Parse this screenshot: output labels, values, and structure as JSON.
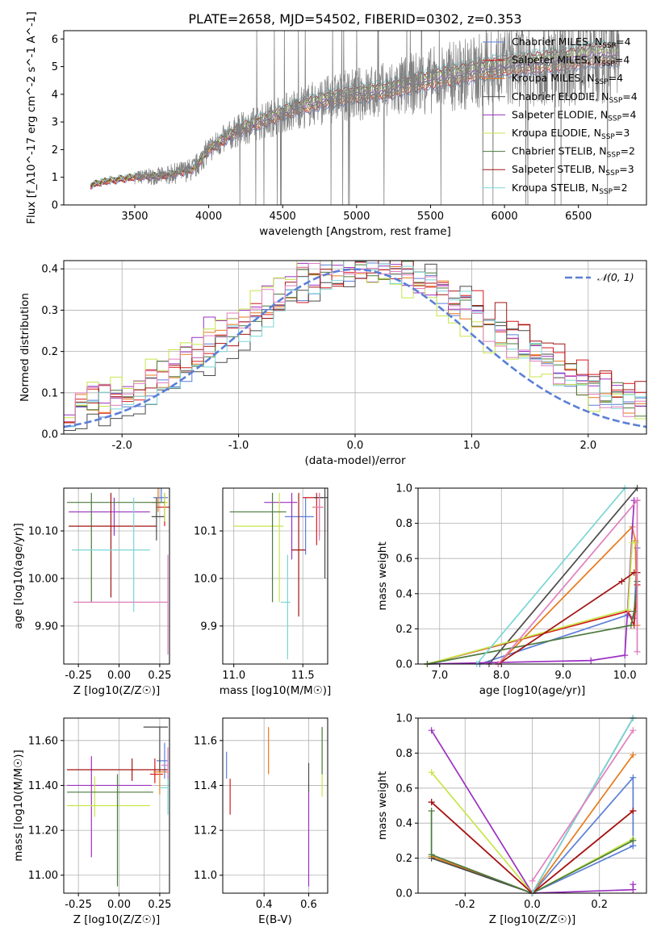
{
  "colors": {
    "data": "#808080",
    "series": [
      "#5b7fd6",
      "#d6191c",
      "#e67b1d",
      "#4a4a4a",
      "#9b30c0",
      "#c6e649",
      "#4c7a3d",
      "#a31515",
      "#7ad6d6",
      "#e07fbf"
    ]
  },
  "chart_data": [
    {
      "id": "spectrum",
      "type": "line",
      "title": "PLATE=2658, MJD=54502, FIBERID=0302, z=0.353",
      "xlabel": "wavelength [Angstrom, rest frame]",
      "ylabel": "Flux [f_λ10^-17 erg cm^-2 s^-1 A^-1]",
      "xlim": [
        3020,
        6960
      ],
      "ylim": [
        0,
        6.3
      ],
      "xticks": [
        3500,
        4000,
        4500,
        5000,
        5500,
        6000,
        6500
      ],
      "yticks": [
        0,
        1,
        2,
        3,
        4,
        5,
        6
      ],
      "grid": false,
      "legend_position": "top-right",
      "continuum": {
        "x": [
          3200,
          3300,
          3500,
          3700,
          3900,
          4000,
          4200,
          4400,
          4600,
          4800,
          5000,
          5200,
          5400,
          5600,
          5800,
          6000,
          6200,
          6400,
          6600,
          6780
        ],
        "y": [
          0.7,
          0.85,
          1.0,
          1.05,
          1.3,
          2.0,
          2.7,
          3.1,
          3.5,
          3.8,
          4.0,
          4.1,
          4.4,
          4.6,
          4.8,
          5.0,
          5.1,
          5.2,
          5.4,
          5.4
        ]
      },
      "series": [
        {
          "name": "Chabrier MILES",
          "nssp": "4"
        },
        {
          "name": "Salpeter MILES",
          "nssp": "4"
        },
        {
          "name": "Kroupa MILES",
          "nssp": "4"
        },
        {
          "name": "Chabrier ELODIE",
          "nssp": "4"
        },
        {
          "name": "Salpeter ELODIE",
          "nssp": "4"
        },
        {
          "name": "Kroupa ELODIE",
          "nssp": "3"
        },
        {
          "name": "Chabrier STELIB",
          "nssp": "2"
        },
        {
          "name": "Salpeter STELIB",
          "nssp": "3"
        },
        {
          "name": "Kroupa STELIB",
          "nssp": "2"
        }
      ]
    },
    {
      "id": "residuals",
      "type": "line",
      "xlabel": "(data-model)/error",
      "ylabel": "Normed distribution",
      "xlim": [
        -2.5,
        2.5
      ],
      "ylim": [
        0,
        0.42
      ],
      "xticks": [
        -2,
        -1,
        0,
        1,
        2
      ],
      "yticks": [
        0.0,
        0.1,
        0.2,
        0.3,
        0.4
      ],
      "grid": true,
      "legend": "𝒩(0, 1)",
      "legend_position": "top-right",
      "gaussian": {
        "mean": 0,
        "sigma": 1
      },
      "bin_width": 0.1
    },
    {
      "id": "age-vs-Z",
      "type": "scatter",
      "xlabel": "Z [log10(Z/Z☉)]",
      "ylabel": "age [log10(age/yr)]",
      "xlim": [
        -0.34,
        0.31
      ],
      "ylim": [
        9.82,
        10.19
      ],
      "xticks": [
        -0.25,
        0.0,
        0.25
      ],
      "yticks": [
        9.9,
        10.0,
        10.1
      ],
      "grid": true,
      "points": [
        {
          "x": 0.26,
          "y": 10.17,
          "xerr": [
            0.05,
            0.04
          ],
          "yerr": [
            0.01,
            0.02
          ]
        },
        {
          "x": 0.28,
          "y": 10.15,
          "xerr": [
            0.05,
            0.03
          ],
          "yerr": [
            0.04,
            0.03
          ]
        },
        {
          "x": 0.24,
          "y": 10.16,
          "xerr": [
            0.04,
            0.06
          ],
          "yerr": [
            0.02,
            0.03
          ]
        },
        {
          "x": 0.23,
          "y": 10.13,
          "xerr": [
            0.03,
            0.05
          ],
          "yerr": [
            0.05,
            0.04
          ]
        },
        {
          "x": -0.03,
          "y": 10.14,
          "xerr": [
            0.28,
            0.22
          ],
          "yerr": [
            0.05,
            0.03
          ]
        },
        {
          "x": 0.28,
          "y": 10.16,
          "xerr": [
            0.03,
            0.02
          ],
          "yerr": [
            0.04,
            0.02
          ]
        },
        {
          "x": -0.17,
          "y": 10.16,
          "xerr": [
            0.15,
            0.45
          ],
          "yerr": [
            0.21,
            0.02
          ]
        },
        {
          "x": -0.05,
          "y": 10.11,
          "xerr": [
            0.26,
            0.28
          ],
          "yerr": [
            0.15,
            0.07
          ]
        },
        {
          "x": 0.09,
          "y": 10.06,
          "xerr": [
            0.38,
            0.1
          ],
          "yerr": [
            0.13,
            0.11
          ]
        },
        {
          "x": 0.3,
          "y": 9.95,
          "xerr": [
            0.58,
            0.0
          ],
          "yerr": [
            0.11,
            0.1
          ]
        }
      ]
    },
    {
      "id": "age-vs-mass",
      "type": "scatter",
      "xlabel": "mass [log10(M/M☉)]",
      "ylabel": "",
      "xlim": [
        10.92,
        11.68
      ],
      "ylim": [
        9.82,
        10.19
      ],
      "xticks": [
        11.0,
        11.5
      ],
      "yticks": [
        9.9,
        10.0,
        10.1
      ],
      "grid": true,
      "points": [
        {
          "x": 11.52,
          "y": 10.13,
          "xerr": [
            0.15,
            0.06
          ],
          "yerr": [
            0.08,
            0.04
          ]
        },
        {
          "x": 11.6,
          "y": 10.17,
          "xerr": [
            0.1,
            0.05
          ],
          "yerr": [
            0.1,
            0.01
          ]
        },
        {
          "x": 11.62,
          "y": 10.15,
          "xerr": [
            0.05,
            0.03
          ],
          "yerr": [
            0.06,
            0.03
          ]
        },
        {
          "x": 11.66,
          "y": 10.17,
          "xerr": [
            0.08,
            0.02
          ],
          "yerr": [
            0.17,
            0.02
          ]
        },
        {
          "x": 11.42,
          "y": 10.16,
          "xerr": [
            0.2,
            0.04
          ],
          "yerr": [
            0.12,
            0.02
          ]
        },
        {
          "x": 11.33,
          "y": 10.11,
          "xerr": [
            0.33,
            0.03
          ],
          "yerr": [
            0.16,
            0.07
          ]
        },
        {
          "x": 11.28,
          "y": 10.14,
          "xerr": [
            0.31,
            0.1
          ],
          "yerr": [
            0.19,
            0.04
          ]
        },
        {
          "x": 11.47,
          "y": 10.06,
          "xerr": [
            0.05,
            0.05
          ],
          "yerr": [
            0.14,
            0.12
          ]
        },
        {
          "x": 11.39,
          "y": 9.95,
          "xerr": [
            0.05,
            0.02
          ],
          "yerr": [
            0.12,
            0.1
          ]
        },
        {
          "x": 11.62,
          "y": 10.15,
          "xerr": [
            0.04,
            0.03
          ],
          "yerr": [
            0.07,
            0.03
          ]
        }
      ]
    },
    {
      "id": "weight-vs-age",
      "type": "line",
      "xlabel": "age [log10(age/yr)]",
      "ylabel": "mass weight",
      "xlim": [
        6.65,
        10.35
      ],
      "ylim": [
        0,
        1
      ],
      "xticks": [
        7,
        8,
        9,
        10
      ],
      "yticks": [
        0.0,
        0.2,
        0.4,
        0.6,
        0.8,
        1.0
      ],
      "grid": true,
      "series": [
        {
          "x": [
            7.65,
            10.05,
            10.15,
            10.2
          ],
          "y": [
            0.0,
            0.28,
            0.26,
            0.66
          ]
        },
        {
          "x": [
            6.8,
            10.05,
            10.15,
            10.2
          ],
          "y": [
            0.0,
            0.3,
            0.22,
            0.45
          ]
        },
        {
          "x": [
            7.95,
            10.12,
            10.17,
            10.2
          ],
          "y": [
            0.0,
            0.78,
            0.7,
            0.22
          ]
        },
        {
          "x": [
            7.8,
            10.2
          ],
          "y": [
            0.0,
            1.0
          ]
        },
        {
          "x": [
            6.8,
            9.45,
            10.0,
            10.15,
            10.2
          ],
          "y": [
            0.0,
            0.02,
            0.05,
            0.93,
            0.93
          ]
        },
        {
          "x": [
            6.8,
            10.05,
            10.12,
            10.18
          ],
          "y": [
            0.0,
            0.31,
            0.69,
            0.69
          ]
        },
        {
          "x": [
            6.8,
            10.1,
            10.15,
            10.2
          ],
          "y": [
            0.0,
            0.22,
            0.3,
            0.47
          ]
        },
        {
          "x": [
            7.95,
            9.95,
            10.15,
            10.2
          ],
          "y": [
            0.0,
            0.47,
            0.52,
            0.52
          ]
        },
        {
          "x": [
            7.6,
            10.0
          ],
          "y": [
            0.0,
            1.0
          ]
        },
        {
          "x": [
            7.95,
            10.2,
            10.2
          ],
          "y": [
            0.0,
            0.93,
            0.07
          ]
        }
      ]
    },
    {
      "id": "mass-vs-Z",
      "type": "scatter",
      "xlabel": "Z [log10(Z/Z☉)]",
      "ylabel": "mass [log10(M/M☉)]",
      "xlim": [
        -0.34,
        0.31
      ],
      "ylim": [
        10.92,
        11.7
      ],
      "xticks": [
        -0.25,
        0.0,
        0.25
      ],
      "yticks": [
        11.0,
        11.2,
        11.4,
        11.6
      ],
      "grid": true,
      "points": [
        {
          "x": 0.28,
          "y": 11.51,
          "xerr": [
            0.05,
            0.02
          ],
          "yerr": [
            0.08,
            0.08
          ]
        },
        {
          "x": 0.22,
          "y": 11.45,
          "xerr": [
            0.03,
            0.05
          ],
          "yerr": [
            0.04,
            0.07
          ]
        },
        {
          "x": 0.25,
          "y": 11.46,
          "xerr": [
            0.04,
            0.05
          ],
          "yerr": [
            0.1,
            0.06
          ]
        },
        {
          "x": 0.25,
          "y": 11.66,
          "xerr": [
            0.1,
            0.05
          ],
          "yerr": [
            0.2,
            0.0
          ]
        },
        {
          "x": -0.17,
          "y": 11.4,
          "xerr": [
            0.15,
            0.37
          ],
          "yerr": [
            0.32,
            0.13
          ]
        },
        {
          "x": -0.15,
          "y": 11.31,
          "xerr": [
            0.17,
            0.34
          ],
          "yerr": [
            0.05,
            0.13
          ]
        },
        {
          "x": -0.01,
          "y": 11.37,
          "xerr": [
            0.31,
            0.22
          ],
          "yerr": [
            0.42,
            0.08
          ]
        },
        {
          "x": 0.08,
          "y": 11.47,
          "xerr": [
            0.4,
            0.22
          ],
          "yerr": [
            0.05,
            0.05
          ]
        },
        {
          "x": 0.3,
          "y": 11.39,
          "xerr": [
            0.05,
            0.0
          ],
          "yerr": [
            0.12,
            0.05
          ]
        },
        {
          "x": 0.3,
          "y": 11.49,
          "xerr": [
            0.04,
            0.0
          ],
          "yerr": [
            0.06,
            0.08
          ]
        }
      ]
    },
    {
      "id": "mass-vs-ebv",
      "type": "scatter",
      "xlabel": "E(B-V)",
      "ylabel": "",
      "xlim": [
        0.215,
        0.685
      ],
      "ylim": [
        10.92,
        11.7
      ],
      "xticks": [
        0.4,
        0.6
      ],
      "yticks": [
        11.0,
        11.2,
        11.4,
        11.6
      ],
      "grid": true,
      "points": [
        {
          "x": 0.232,
          "y": 11.49,
          "xerr": [
            0,
            0
          ],
          "yerr": [
            0.06,
            0.06
          ]
        },
        {
          "x": 0.248,
          "y": 11.35,
          "xerr": [
            0,
            0
          ],
          "yerr": [
            0.08,
            0.08
          ]
        },
        {
          "x": 0.42,
          "y": 11.55,
          "xerr": [
            0,
            0
          ],
          "yerr": [
            0.1,
            0.11
          ]
        },
        {
          "x": 0.6,
          "y": 11.42,
          "xerr": [
            0,
            0
          ],
          "yerr": [
            0.05,
            0.08
          ]
        },
        {
          "x": 0.6,
          "y": 11.25,
          "xerr": [
            0,
            0
          ],
          "yerr": [
            0.3,
            0.12
          ]
        },
        {
          "x": 0.66,
          "y": 11.5,
          "xerr": [
            0,
            0
          ],
          "yerr": [
            0.15,
            0.16
          ]
        },
        {
          "x": 0.66,
          "y": 11.55,
          "xerr": [
            0,
            0
          ],
          "yerr": [
            0.1,
            0.11
          ]
        }
      ]
    },
    {
      "id": "weight-vs-Z",
      "type": "line",
      "xlabel": "Z [log10(Z/Z☉)]",
      "ylabel": "mass weight",
      "xlim": [
        -0.34,
        0.34
      ],
      "ylim": [
        0,
        1
      ],
      "xticks": [
        -0.2,
        0.0,
        0.2
      ],
      "yticks": [
        0.0,
        0.2,
        0.4,
        0.6,
        0.8,
        1.0
      ],
      "grid": true,
      "series": [
        {
          "x": [
            0.3,
            0.0,
            0.3,
            0.3
          ],
          "y": [
            0.27,
            0.0,
            0.66,
            0.27
          ]
        },
        {
          "x": [
            -0.3,
            0.0,
            0.3
          ],
          "y": [
            0.52,
            0.0,
            0.47
          ]
        },
        {
          "x": [
            -0.3,
            0.0,
            0.3
          ],
          "y": [
            0.21,
            0.0,
            0.79
          ]
        },
        {
          "x": [
            -0.3,
            0.0,
            0.3
          ],
          "y": [
            0.2,
            0.0,
            1.0
          ]
        },
        {
          "x": [
            -0.3,
            0.0,
            0.3,
            0.3
          ],
          "y": [
            0.93,
            0.0,
            0.02,
            0.05
          ]
        },
        {
          "x": [
            -0.3,
            0.0,
            0.3
          ],
          "y": [
            0.69,
            0.0,
            0.31
          ]
        },
        {
          "x": [
            -0.3,
            -0.3,
            0.0,
            0.3
          ],
          "y": [
            0.47,
            0.22,
            0.0,
            0.3
          ]
        },
        {
          "x": [
            -0.3,
            0.0,
            0.3
          ],
          "y": [
            0.52,
            0.0,
            0.47
          ]
        },
        {
          "x": [
            0.0,
            0.3
          ],
          "y": [
            0.0,
            1.0
          ]
        },
        {
          "x": [
            0.0,
            0.3
          ],
          "y": [
            0.07,
            0.93
          ]
        }
      ]
    }
  ]
}
